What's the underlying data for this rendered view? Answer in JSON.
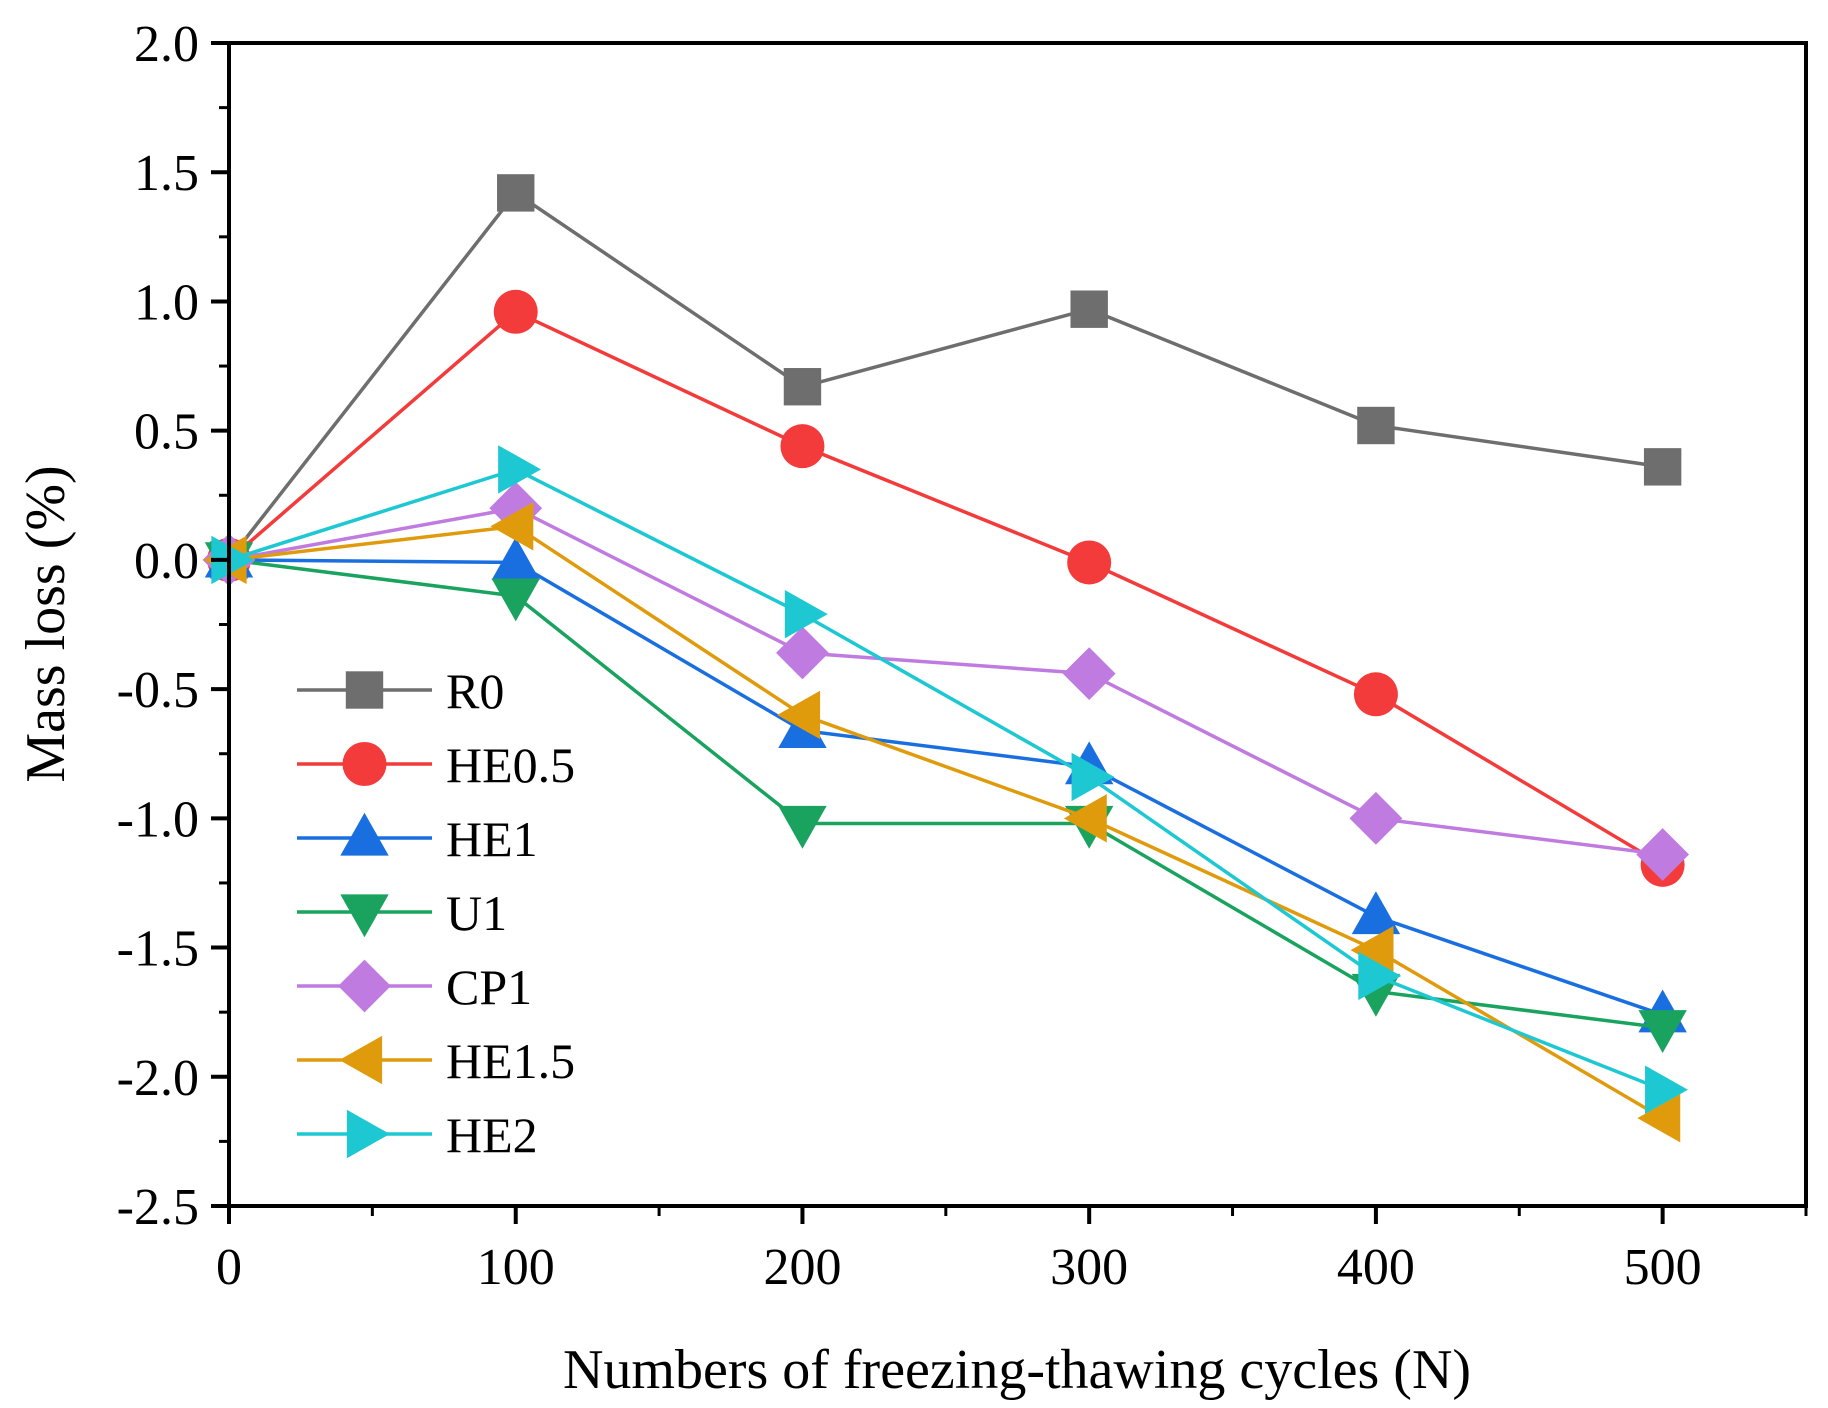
{
  "chart_data": {
    "type": "line",
    "title": "",
    "xlabel": "Numbers of freezing-thawing cycles (N)",
    "ylabel": "Mass loss (%)",
    "xlim": [
      0,
      550
    ],
    "ylim": [
      -2.5,
      2.0
    ],
    "x_ticks": [
      0,
      100,
      200,
      300,
      400,
      500
    ],
    "x_tick_labels": [
      "0",
      "100",
      "200",
      "300",
      "400",
      "500"
    ],
    "y_ticks": [
      2.0,
      1.5,
      1.0,
      0.5,
      0.0,
      -0.5,
      -1.0,
      -1.5,
      -2.0,
      -2.5
    ],
    "y_tick_labels": [
      "2.0",
      "1.5",
      "1.0",
      "0.5",
      "0.0",
      "-0.5",
      "-1.0",
      "-1.5",
      "-2.0",
      "-2.5"
    ],
    "grid": false,
    "legend_position": "lower-left",
    "x": [
      0,
      100,
      200,
      300,
      400,
      500
    ],
    "series": [
      {
        "name": "R0",
        "marker": "square",
        "color": "#6e6e6e",
        "values": [
          0,
          1.42,
          0.67,
          0.97,
          0.52,
          0.36
        ]
      },
      {
        "name": "HE0.5",
        "marker": "circle",
        "color": "#f43b3b",
        "values": [
          0,
          0.96,
          0.44,
          -0.01,
          -0.52,
          -1.18
        ]
      },
      {
        "name": "HE1",
        "marker": "triangle-up",
        "color": "#1a6fe0",
        "values": [
          0,
          -0.01,
          -0.66,
          -0.8,
          -1.38,
          -1.76
        ]
      },
      {
        "name": "U1",
        "marker": "triangle-down",
        "color": "#1aa35f",
        "values": [
          0,
          -0.14,
          -1.02,
          -1.02,
          -1.67,
          -1.81
        ]
      },
      {
        "name": "CP1",
        "marker": "diamond",
        "color": "#c07be0",
        "values": [
          0,
          0.2,
          -0.36,
          -0.44,
          -1.0,
          -1.14
        ]
      },
      {
        "name": "HE1.5",
        "marker": "triangle-left",
        "color": "#e09b0d",
        "values": [
          0,
          0.13,
          -0.6,
          -1.0,
          -1.51,
          -2.16
        ]
      },
      {
        "name": "HE2",
        "marker": "triangle-right",
        "color": "#1ec8d2",
        "values": [
          0,
          0.35,
          -0.21,
          -0.84,
          -1.61,
          -2.05
        ]
      }
    ]
  }
}
